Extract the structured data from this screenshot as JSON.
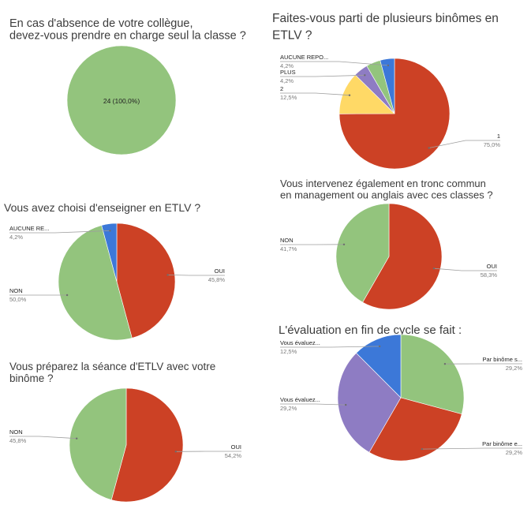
{
  "colors": {
    "green": "#93c47d",
    "red": "#cc4125",
    "blue": "#3c78d8",
    "yellow": "#ffd966",
    "purple": "#8e7cc3"
  },
  "chart_data": [
    {
      "type": "pie",
      "id": "c1",
      "title": [
        "En cas d'absence de votre collègue,",
        "devez-vous prendre en charge seul la classe ?"
      ],
      "inside_label": "24 (100,0%)",
      "slices": [
        {
          "label": "",
          "value": 100.0,
          "percent": "100,0%",
          "color": "#93c47d"
        }
      ]
    },
    {
      "type": "pie",
      "id": "c2",
      "title": [
        "Faites-vous parti de plusieurs binômes en",
        "ETLV ?"
      ],
      "slices": [
        {
          "label": "1",
          "value": 75.0,
          "percent": "75,0%",
          "color": "#cc4125"
        },
        {
          "label": "2",
          "value": 12.5,
          "percent": "12,5%",
          "color": "#ffd966"
        },
        {
          "label": "PLUS",
          "value": 4.2,
          "percent": "4,2%",
          "color": "#8e7cc3"
        },
        {
          "label": "",
          "value": 4.2,
          "percent": "",
          "color": "#93c47d"
        },
        {
          "label": "AUCUNE REPO...",
          "value": 4.2,
          "percent": "4,2%",
          "color": "#3c78d8"
        }
      ]
    },
    {
      "type": "pie",
      "id": "c3",
      "title": [
        "Vous avez choisi d'enseigner en ETLV ?"
      ],
      "slices": [
        {
          "label": "OUI",
          "value": 45.8,
          "percent": "45,8%",
          "color": "#cc4125"
        },
        {
          "label": "NON",
          "value": 50.0,
          "percent": "50,0%",
          "color": "#93c47d"
        },
        {
          "label": "AUCUNE RE...",
          "value": 4.2,
          "percent": "4,2%",
          "color": "#3c78d8"
        }
      ]
    },
    {
      "type": "pie",
      "id": "c4",
      "title": [
        "Vous intervenez également en tronc commun",
        "en management ou anglais avec ces classes ?"
      ],
      "slices": [
        {
          "label": "OUI",
          "value": 58.3,
          "percent": "58,3%",
          "color": "#cc4125"
        },
        {
          "label": "NON",
          "value": 41.7,
          "percent": "41,7%",
          "color": "#93c47d"
        }
      ]
    },
    {
      "type": "pie",
      "id": "c5",
      "title": [
        "Vous préparez la séance d'ETLV avec votre",
        "binôme ?"
      ],
      "slices": [
        {
          "label": "OUI",
          "value": 54.2,
          "percent": "54,2%",
          "color": "#cc4125"
        },
        {
          "label": "NON",
          "value": 45.8,
          "percent": "45,8%",
          "color": "#93c47d"
        }
      ]
    },
    {
      "type": "pie",
      "id": "c6",
      "title": [
        "L'évaluation en fin de cycle se fait :"
      ],
      "slices": [
        {
          "label": "Par binôme s...",
          "value": 29.2,
          "percent": "29,2%",
          "color": "#93c47d"
        },
        {
          "label": "Par binôme e...",
          "value": 29.2,
          "percent": "29,2%",
          "color": "#cc4125"
        },
        {
          "label": "Vous évaluez...",
          "value": 29.2,
          "percent": "29,2%",
          "color": "#8e7cc3"
        },
        {
          "label": "Vous évaluez...",
          "value": 12.5,
          "percent": "12,5%",
          "color": "#3c78d8"
        }
      ]
    }
  ]
}
